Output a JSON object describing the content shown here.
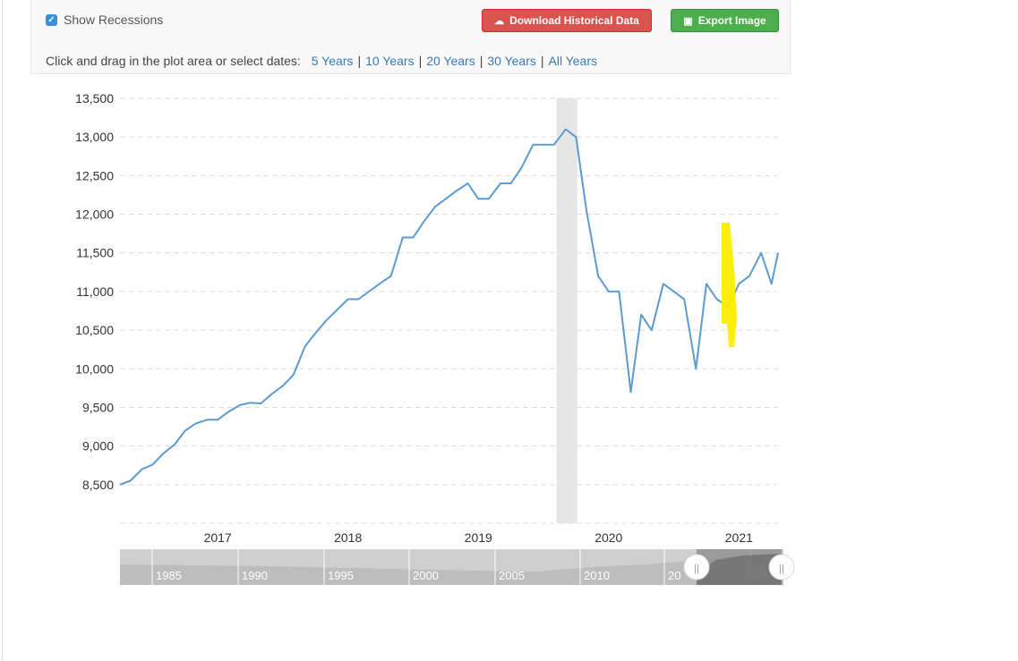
{
  "toolbar": {
    "recessions_label": "Show Recessions",
    "recessions_checked": true,
    "download_label": "Download Historical Data",
    "export_label": "Export Image",
    "range_prompt": "Click and drag in the plot area or select dates:",
    "ranges": [
      "5 Years",
      "10 Years",
      "20 Years",
      "30 Years",
      "All Years"
    ]
  },
  "colors": {
    "line": "#5b9bd1",
    "recession": "#e6e6e6",
    "highlight": "#ffec00",
    "download_button": "#d9534f",
    "export_button": "#4cae4c",
    "link": "#3a78b5"
  },
  "chart_data": {
    "type": "line",
    "title": "",
    "xlabel": "",
    "ylabel": "",
    "ylim": [
      8000,
      13500
    ],
    "yticks": [
      8500,
      9000,
      9500,
      10000,
      10500,
      11000,
      11500,
      12000,
      12500,
      13000,
      13500
    ],
    "ytick_labels": [
      "8,500",
      "9,000",
      "9,500",
      "10,000",
      "10,500",
      "11,000",
      "11,500",
      "12,000",
      "12,500",
      "13,000",
      "13,500"
    ],
    "xlim": [
      2016.25,
      2021.3
    ],
    "xtick_labels": [
      "2017",
      "2018",
      "2019",
      "2020",
      "2021"
    ],
    "xticks": [
      2017,
      2018,
      2019,
      2020,
      2021
    ],
    "grid": true,
    "recession": [
      2019.6,
      2019.76
    ],
    "series": [
      {
        "x": [
          2016.25,
          2016.33,
          2016.42,
          2016.5,
          2016.58,
          2016.67,
          2016.75,
          2016.83,
          2016.92,
          2017.0,
          2017.08,
          2017.17,
          2017.25,
          2017.33,
          2017.42,
          2017.5,
          2017.58,
          2017.67,
          2017.75,
          2017.83,
          2017.92,
          2018.0,
          2018.08,
          2018.17,
          2018.25,
          2018.33,
          2018.42,
          2018.5,
          2018.58,
          2018.67,
          2018.75,
          2018.83,
          2018.92,
          2019.0,
          2019.08,
          2019.17,
          2019.25,
          2019.33,
          2019.42,
          2019.5,
          2019.58,
          2019.67,
          2019.75,
          2019.83,
          2019.92,
          2020.0,
          2020.08,
          2020.17,
          2020.25,
          2020.33,
          2020.42,
          2020.5,
          2020.58,
          2020.67,
          2020.75,
          2020.83,
          2020.92,
          2021.0,
          2021.08,
          2021.17,
          2021.25,
          2021.3
        ],
        "values": [
          8500,
          8550,
          8700,
          8760,
          8900,
          9020,
          9200,
          9290,
          9340,
          9340,
          9440,
          9530,
          9560,
          9550,
          9680,
          9780,
          9920,
          10290,
          10460,
          10620,
          10770,
          10900,
          10900,
          11010,
          11110,
          11200,
          11700,
          11700,
          11900,
          12100,
          12200,
          12300,
          12400,
          12200,
          12200,
          12400,
          12400,
          12600,
          12900,
          12900,
          12900,
          13100,
          13000,
          12050,
          11200,
          11000,
          11000,
          9700,
          10700,
          10500,
          11100,
          11000,
          10900,
          10000,
          11100,
          10900,
          10800,
          11100,
          11200,
          11500,
          11100,
          11500
        ]
      }
    ],
    "navigator": {
      "labels": [
        "1985",
        "1990",
        "1995",
        "2000",
        "2005",
        "2010",
        "20",
        "20"
      ],
      "handle_glyph": "||"
    }
  }
}
